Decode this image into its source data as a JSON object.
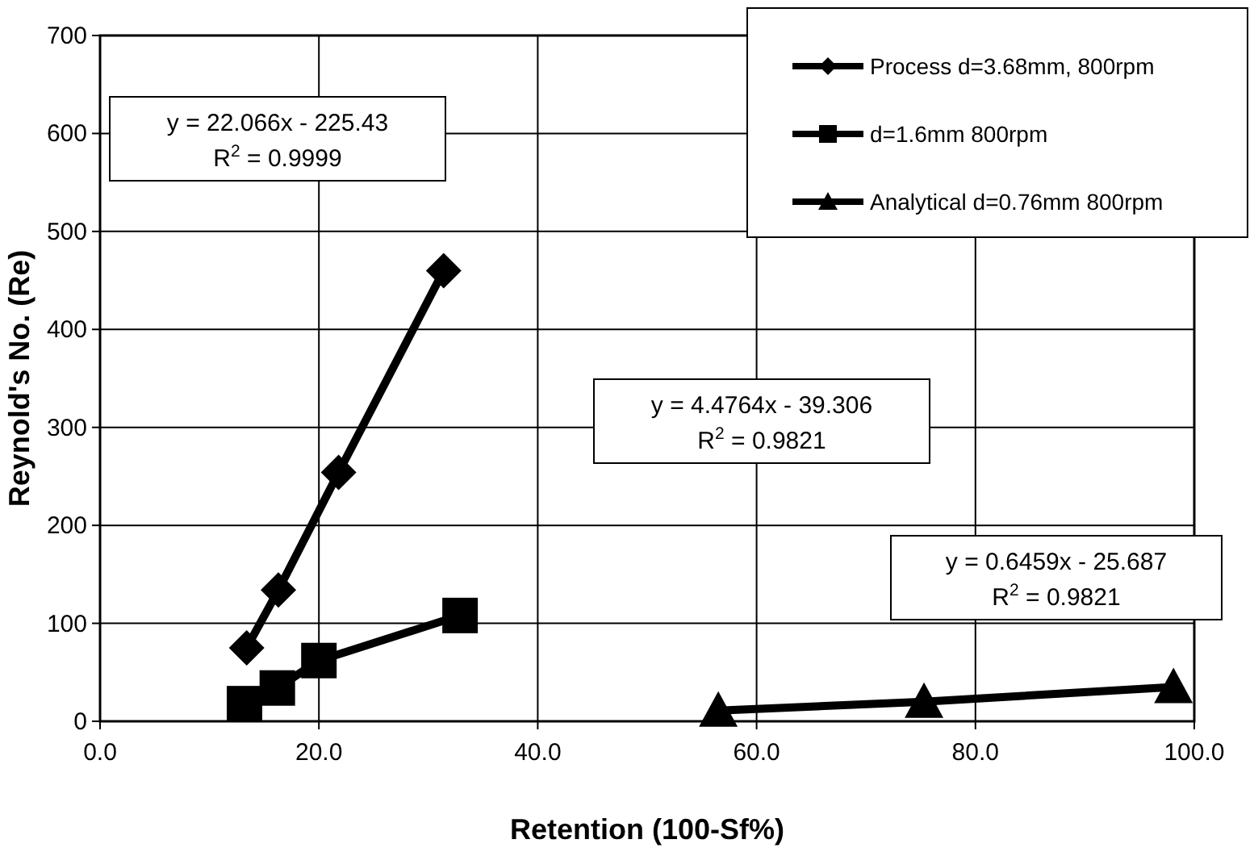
{
  "chart_data": {
    "type": "line",
    "xlabel": "Retention (100-Sf%)",
    "ylabel": "Reynold's No. (Re)",
    "xlim": [
      0,
      100
    ],
    "xticks": [
      {
        "value": 0,
        "label": "0.0"
      },
      {
        "value": 20,
        "label": "20.0"
      },
      {
        "value": 40,
        "label": "40.0"
      },
      {
        "value": 60,
        "label": "60.0"
      },
      {
        "value": 80,
        "label": "80.0"
      },
      {
        "value": 100,
        "label": "100.0"
      }
    ],
    "ylim": [
      0,
      700
    ],
    "yticks": [
      0,
      100,
      200,
      300,
      400,
      500,
      600,
      700
    ],
    "grid": true,
    "legend": "top right",
    "line_style": "solid",
    "series": [
      {
        "name": "Process d=3.68mm, 800rpm",
        "color": "#000000",
        "marker": "diamond",
        "x": [
          13.4,
          16.3,
          21.8,
          31.4
        ],
        "values": [
          75,
          134,
          254,
          460
        ]
      },
      {
        "name": "d=1.6mm 800rpm",
        "color": "#000000",
        "marker": "square",
        "x": [
          13.2,
          16.2,
          20.0,
          32.9
        ],
        "values": [
          18,
          34,
          62,
          108
        ]
      },
      {
        "name": "Analytical d=0.76mm 800rpm",
        "color": "#000000",
        "marker": "triangle",
        "x": [
          56.5,
          75.3,
          98.1
        ],
        "values": [
          11,
          20,
          35
        ]
      }
    ],
    "annotations": [
      "y = 22.066x - 225.43\nR$^{2}$ = 0.9999",
      "y = 4.4764x - 39.306\nR$^{2}$ = 0.9821",
      "y = 0.6459x - 25.687\nR$^{2}$ = 0.9821"
    ]
  }
}
